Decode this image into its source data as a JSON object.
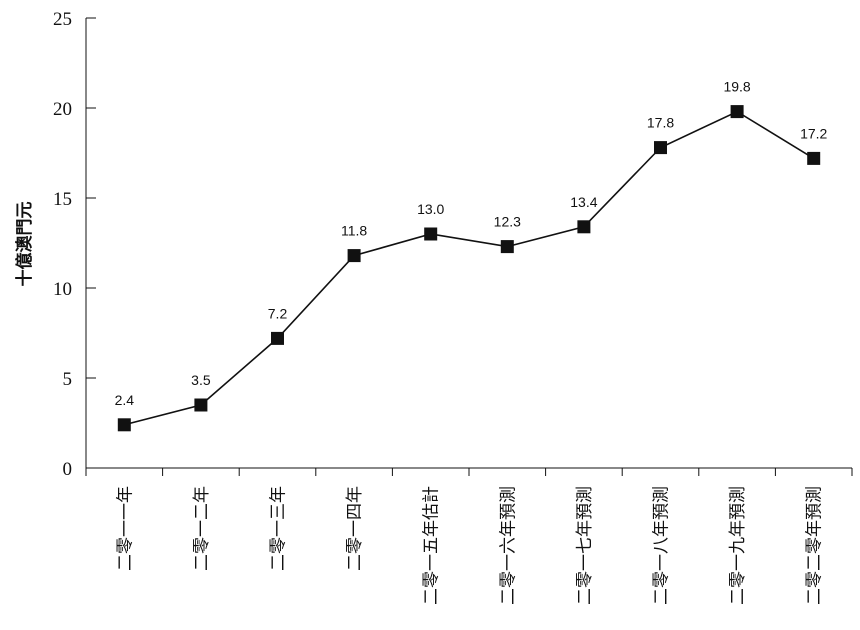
{
  "chart_data": {
    "type": "line",
    "title": "",
    "xlabel": "",
    "ylabel": "十億澳門元",
    "ylim": [
      0,
      25
    ],
    "yticks": [
      0,
      5,
      10,
      15,
      20,
      25
    ],
    "grid": false,
    "categories": [
      "二零一一年",
      "二零一二年",
      "二零一三年",
      "二零一四年",
      "二零一五年估計",
      "二零一六年預測",
      "二零一七年預測",
      "二零一八年預測",
      "二零一九年預測",
      "二零二零年預測"
    ],
    "series": [
      {
        "values": [
          2.4,
          3.5,
          7.2,
          11.8,
          13.0,
          12.3,
          13.4,
          17.8,
          19.8,
          17.2
        ],
        "labels": [
          "2.4",
          "3.5",
          "7.2",
          "11.8",
          "13.0",
          "12.3",
          "13.4",
          "17.8",
          "19.8",
          "17.2"
        ]
      }
    ],
    "line_color": "#111111",
    "marker": "square"
  }
}
